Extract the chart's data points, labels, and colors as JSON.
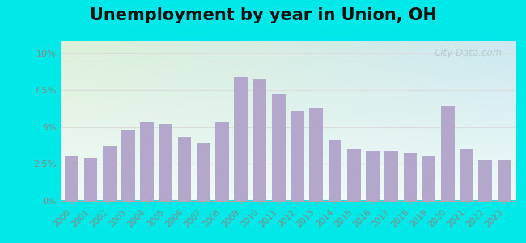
{
  "title": "Unemployment by year in Union, OH",
  "years": [
    2000,
    2001,
    2002,
    2003,
    2004,
    2005,
    2006,
    2007,
    2008,
    2009,
    2010,
    2011,
    2012,
    2013,
    2014,
    2015,
    2016,
    2017,
    2018,
    2019,
    2020,
    2021,
    2022,
    2023
  ],
  "values": [
    3.0,
    2.9,
    3.7,
    4.8,
    5.3,
    5.2,
    4.3,
    3.9,
    5.3,
    8.4,
    8.2,
    7.2,
    6.1,
    6.3,
    4.1,
    3.5,
    3.4,
    3.4,
    3.2,
    3.0,
    6.4,
    3.5,
    2.8,
    2.8
  ],
  "bar_color": "#b3a8cc",
  "bg_outer": "#00e8e8",
  "yticks": [
    0,
    2.5,
    5.0,
    7.5,
    10.0
  ],
  "ytick_labels": [
    "0%",
    "2.5%",
    "5%",
    "7.5%",
    "10%"
  ],
  "ylim": [
    0,
    10.8
  ],
  "title_fontsize": 15,
  "watermark": "City-Data.com",
  "chart_bg_topleft": "#ddf0d8",
  "chart_bg_topright": "#cce8f0",
  "chart_bg_bottom": "#f0faf8",
  "tick_color": "#888888",
  "grid_color": "#dddddd"
}
